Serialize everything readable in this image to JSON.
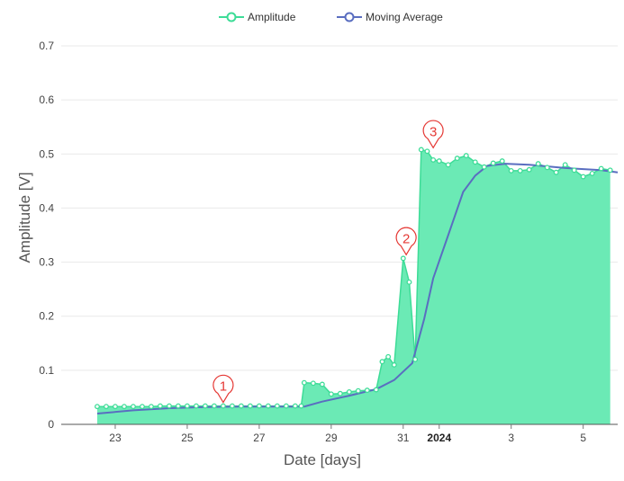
{
  "legend": {
    "amplitude_label": "Amplitude",
    "moving_average_label": "Moving Average"
  },
  "colors": {
    "amplitude_line": "#3ddc97",
    "amplitude_fill": "#6beab5",
    "moving_average_line": "#5a6ec0",
    "grid": "#e9e9e9",
    "callout": "#e53935"
  },
  "chart_data": {
    "type": "area",
    "xlabel": "Date [days]",
    "ylabel": "Amplitude [V]",
    "ylim": [
      0,
      0.7
    ],
    "xlim": [
      "2023-12-21T12:00",
      "2024-01-05T23:00"
    ],
    "grid": true,
    "legend_position": "top",
    "y_ticks": [
      "0",
      "0.1",
      "0.2",
      "0.3",
      "0.4",
      "0.5",
      "0.6",
      "0.7"
    ],
    "x_ticks": [
      {
        "date": "2023-12-23",
        "label": "23",
        "bold": false
      },
      {
        "date": "2023-12-25",
        "label": "25",
        "bold": false
      },
      {
        "date": "2023-12-27",
        "label": "27",
        "bold": false
      },
      {
        "date": "2023-12-29",
        "label": "29",
        "bold": false
      },
      {
        "date": "2023-12-31",
        "label": "31",
        "bold": false
      },
      {
        "date": "2024-01-01",
        "label": "2024",
        "bold": true
      },
      {
        "date": "2024-01-03",
        "label": "3",
        "bold": false
      },
      {
        "date": "2024-01-05",
        "label": "5",
        "bold": false
      }
    ],
    "series": [
      {
        "name": "Amplitude",
        "x": [
          "2023-12-22T12:00",
          "2023-12-22T18:00",
          "2023-12-23T00:00",
          "2023-12-23T06:00",
          "2023-12-23T12:00",
          "2023-12-23T18:00",
          "2023-12-24T00:00",
          "2023-12-24T06:00",
          "2023-12-24T12:00",
          "2023-12-24T18:00",
          "2023-12-25T00:00",
          "2023-12-25T06:00",
          "2023-12-25T12:00",
          "2023-12-25T18:00",
          "2023-12-26T00:00",
          "2023-12-26T06:00",
          "2023-12-26T12:00",
          "2023-12-26T18:00",
          "2023-12-27T00:00",
          "2023-12-27T06:00",
          "2023-12-27T12:00",
          "2023-12-27T18:00",
          "2023-12-28T00:00",
          "2023-12-28T04:00",
          "2023-12-28T06:00",
          "2023-12-28T12:00",
          "2023-12-28T18:00",
          "2023-12-29T00:00",
          "2023-12-29T06:00",
          "2023-12-29T12:00",
          "2023-12-29T18:00",
          "2023-12-30T00:00",
          "2023-12-30T06:00",
          "2023-12-30T10:00",
          "2023-12-30T14:00",
          "2023-12-30T18:00",
          "2023-12-31T00:00",
          "2023-12-31T04:00",
          "2023-12-31T08:00",
          "2023-12-31T12:00",
          "2023-12-31T16:00",
          "2023-12-31T20:00",
          "2024-01-01T00:00",
          "2024-01-01T06:00",
          "2024-01-01T12:00",
          "2024-01-01T18:00",
          "2024-01-02T00:00",
          "2024-01-02T06:00",
          "2024-01-02T12:00",
          "2024-01-02T18:00",
          "2024-01-03T00:00",
          "2024-01-03T06:00",
          "2024-01-03T12:00",
          "2024-01-03T18:00",
          "2024-01-04T00:00",
          "2024-01-04T06:00",
          "2024-01-04T12:00",
          "2024-01-04T18:00",
          "2024-01-05T00:00",
          "2024-01-05T06:00",
          "2024-01-05T12:00",
          "2024-01-05T18:00"
        ],
        "values": [
          0.033,
          0.033,
          0.033,
          0.033,
          0.033,
          0.033,
          0.033,
          0.034,
          0.034,
          0.034,
          0.034,
          0.034,
          0.034,
          0.034,
          0.034,
          0.034,
          0.034,
          0.034,
          0.034,
          0.034,
          0.034,
          0.034,
          0.034,
          0.034,
          0.077,
          0.076,
          0.074,
          0.056,
          0.057,
          0.06,
          0.062,
          0.063,
          0.064,
          0.116,
          0.125,
          0.11,
          0.307,
          0.263,
          0.12,
          0.508,
          0.505,
          0.489,
          0.487,
          0.48,
          0.492,
          0.497,
          0.485,
          0.476,
          0.483,
          0.487,
          0.469,
          0.469,
          0.471,
          0.482,
          0.475,
          0.466,
          0.48,
          0.47,
          0.458,
          0.464,
          0.473,
          0.47
        ]
      },
      {
        "name": "Moving Average",
        "x": [
          "2023-12-22T12:00",
          "2023-12-23T12:00",
          "2023-12-24T12:00",
          "2023-12-25T12:00",
          "2023-12-26T12:00",
          "2023-12-27T12:00",
          "2023-12-28T06:00",
          "2023-12-28T18:00",
          "2023-12-29T12:00",
          "2023-12-30T06:00",
          "2023-12-30T18:00",
          "2023-12-31T06:00",
          "2023-12-31T14:00",
          "2023-12-31T20:00",
          "2024-01-01T06:00",
          "2024-01-01T16:00",
          "2024-01-02T00:00",
          "2024-01-02T08:00",
          "2024-01-02T20:00",
          "2024-01-03T12:00",
          "2024-01-04T12:00",
          "2024-01-05T12:00",
          "2024-01-05T23:00"
        ],
        "values": [
          0.02,
          0.026,
          0.03,
          0.032,
          0.033,
          0.033,
          0.033,
          0.042,
          0.053,
          0.065,
          0.082,
          0.113,
          0.195,
          0.27,
          0.35,
          0.43,
          0.46,
          0.478,
          0.482,
          0.48,
          0.474,
          0.47,
          0.466
        ]
      }
    ],
    "annotations": [
      {
        "label": "1",
        "x": "2023-12-26T00:00",
        "y": 0.034
      },
      {
        "label": "2",
        "x": "2023-12-31T02:00",
        "y": 0.307
      },
      {
        "label": "3",
        "x": "2023-12-31T20:00",
        "y": 0.505
      }
    ]
  }
}
